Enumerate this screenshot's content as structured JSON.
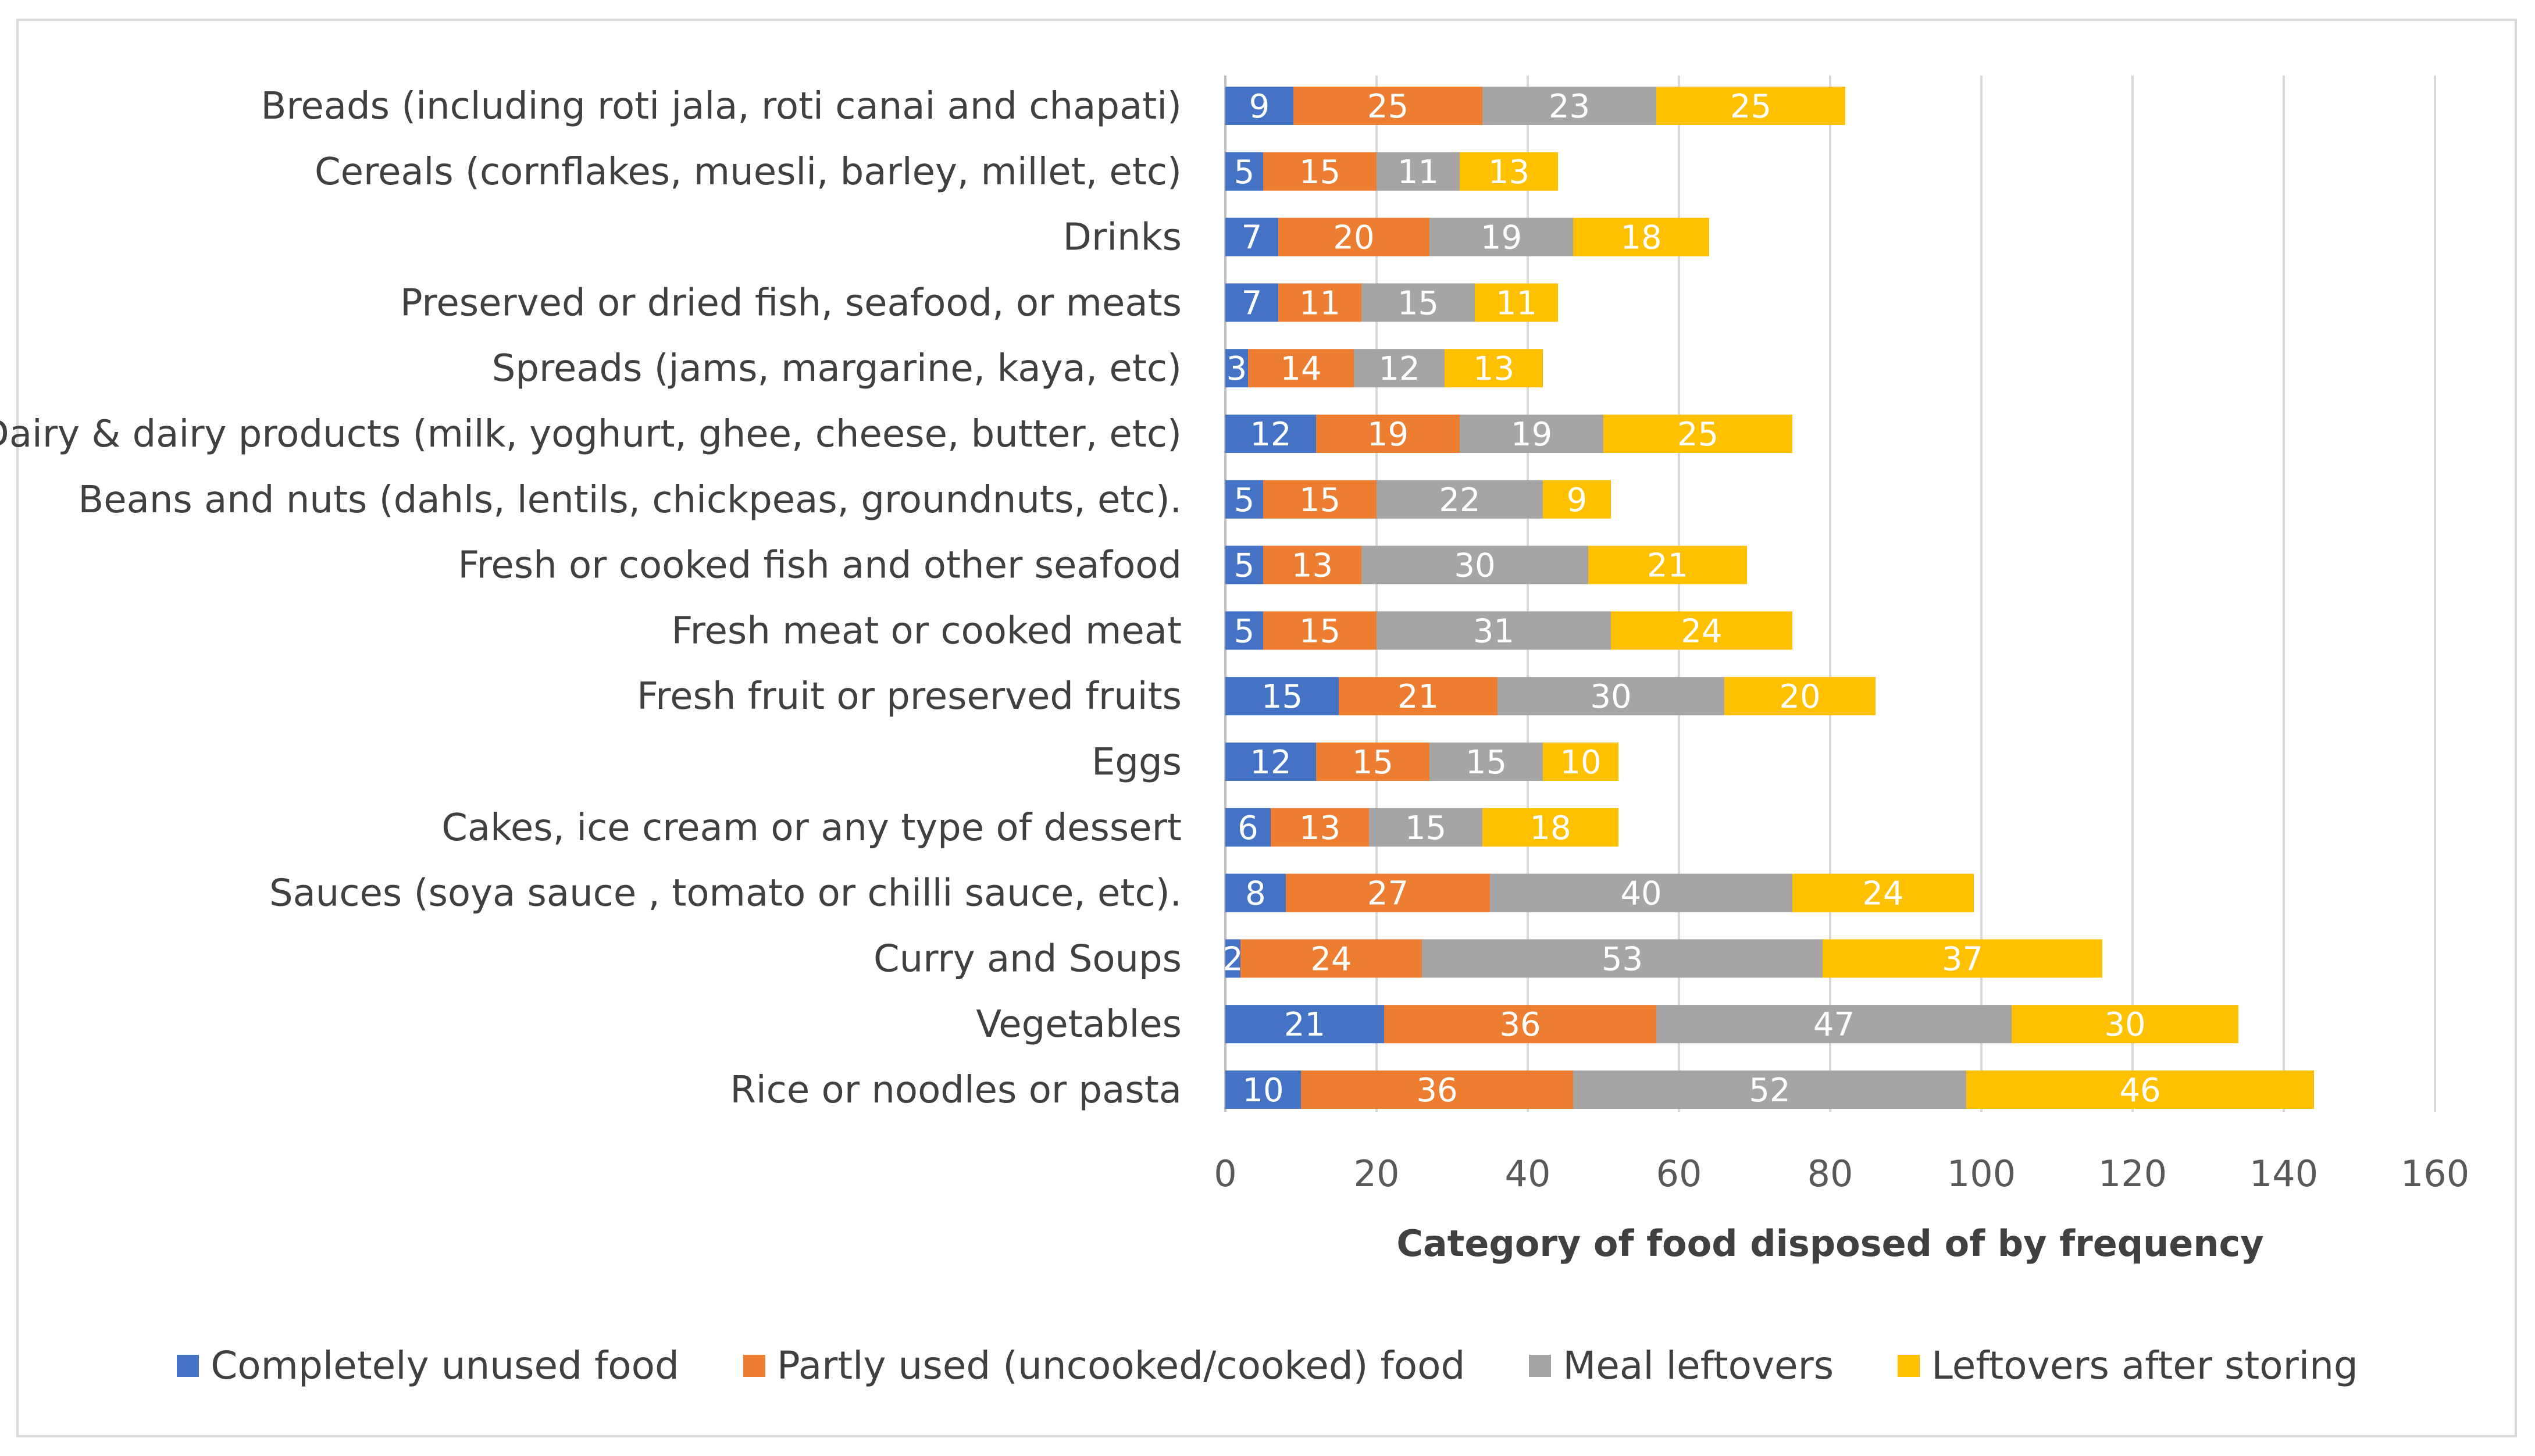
{
  "chart_data": {
    "type": "bar",
    "orientation": "horizontal",
    "stacked": true,
    "title": "",
    "xlabel": "Category of food disposed of by frequency",
    "ylabel": "",
    "xlim": [
      0,
      160
    ],
    "x_ticks": [
      0,
      20,
      40,
      60,
      80,
      100,
      120,
      140,
      160
    ],
    "grid": "vertical",
    "legend_position": "bottom",
    "categories": [
      "Breads (including roti jala, roti canai and chapati)",
      "Cereals (cornflakes, muesli, barley, millet, etc)",
      "Drinks",
      "Preserved or dried fish, seafood, or meats",
      "Spreads (jams, margarine, kaya, etc)",
      "Dairy & dairy products (milk, yoghurt, ghee, cheese, butter, etc)",
      "Beans and nuts (dahls, lentils, chickpeas, groundnuts, etc).",
      "Fresh or cooked fish and other seafood",
      "Fresh meat or cooked meat",
      "Fresh fruit or preserved fruits",
      "Eggs",
      "Cakes, ice cream or any type of dessert",
      "Sauces (soya sauce , tomato or chilli sauce, etc).",
      "Curry and Soups",
      "Vegetables",
      "Rice or noodles or pasta"
    ],
    "series": [
      {
        "name": "Completely unused food",
        "color": "#4472C4",
        "values": [
          9,
          5,
          7,
          7,
          3,
          12,
          5,
          5,
          5,
          15,
          12,
          6,
          8,
          2,
          21,
          10
        ]
      },
      {
        "name": "Partly used (uncooked/cooked) food",
        "color": "#ED7D31",
        "values": [
          25,
          15,
          20,
          11,
          14,
          19,
          15,
          13,
          15,
          21,
          15,
          13,
          27,
          24,
          36,
          36
        ]
      },
      {
        "name": "Meal leftovers",
        "color": "#A5A5A5",
        "values": [
          23,
          11,
          19,
          15,
          12,
          19,
          22,
          30,
          31,
          30,
          15,
          15,
          40,
          53,
          47,
          52
        ]
      },
      {
        "name": "Leftovers after storing",
        "color": "#FFC000",
        "values": [
          25,
          13,
          18,
          11,
          13,
          25,
          9,
          21,
          24,
          20,
          10,
          18,
          24,
          37,
          30,
          46
        ]
      }
    ]
  }
}
